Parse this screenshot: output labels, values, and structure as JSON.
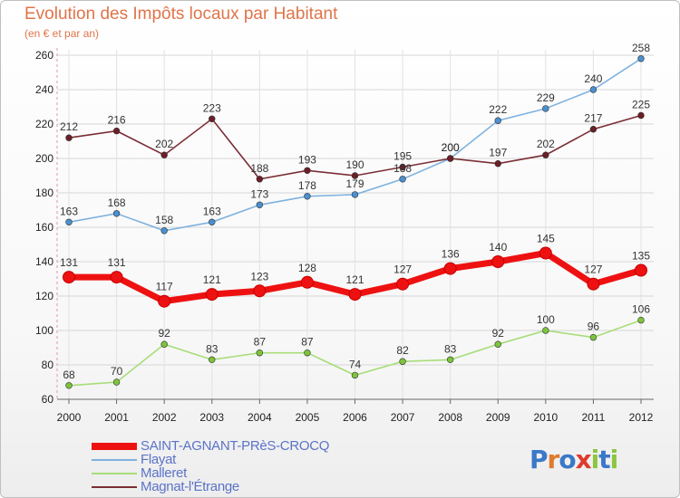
{
  "title": "Evolution des Impôts locaux par Habitant",
  "subtitle": "(en € et par an)",
  "logo": {
    "letters": [
      "P",
      "r",
      "o",
      "x",
      "i",
      "t",
      "i"
    ],
    "colors": [
      "#3a78c8",
      "#e07a2e",
      "#3a78c8",
      "#e03a2e",
      "#8cc63f",
      "#3a78c8",
      "#8cc63f"
    ]
  },
  "chart_data": {
    "type": "line",
    "title": "Evolution des Impôts locaux par Habitant",
    "ylabel": "(en € et par an)",
    "xlabel": "",
    "x": [
      "2000",
      "2001",
      "2002",
      "2003",
      "2004",
      "2005",
      "2006",
      "2007",
      "2008",
      "2009",
      "2010",
      "2011",
      "2012"
    ],
    "ylim": [
      60,
      260
    ],
    "yticks": [
      "60",
      "80",
      "100",
      "120",
      "140",
      "160",
      "180",
      "200",
      "220",
      "240",
      "260"
    ],
    "grid": true,
    "series": [
      {
        "name": "SAINT-AGNANT-PRèS-CROCQ",
        "color": "#ee1111",
        "thick": true,
        "values": [
          131,
          131,
          117,
          121,
          123,
          128,
          121,
          127,
          136,
          140,
          145,
          127,
          135
        ]
      },
      {
        "name": "Flayat",
        "color": "#7fb2df",
        "marker": "#4a90d0",
        "values": [
          163,
          168,
          158,
          163,
          173,
          178,
          179,
          188,
          200,
          222,
          229,
          240,
          258
        ]
      },
      {
        "name": "Malleret",
        "color": "#a8dd78",
        "marker": "#7cc43c",
        "values": [
          68,
          70,
          92,
          83,
          87,
          87,
          74,
          82,
          83,
          92,
          100,
          96,
          106
        ]
      },
      {
        "name": "Magnat-l'Étrange",
        "color": "#7a2e35",
        "marker": "#6b1f26",
        "values": [
          212,
          216,
          202,
          223,
          188,
          193,
          190,
          195,
          200,
          197,
          202,
          217,
          225
        ]
      }
    ]
  }
}
